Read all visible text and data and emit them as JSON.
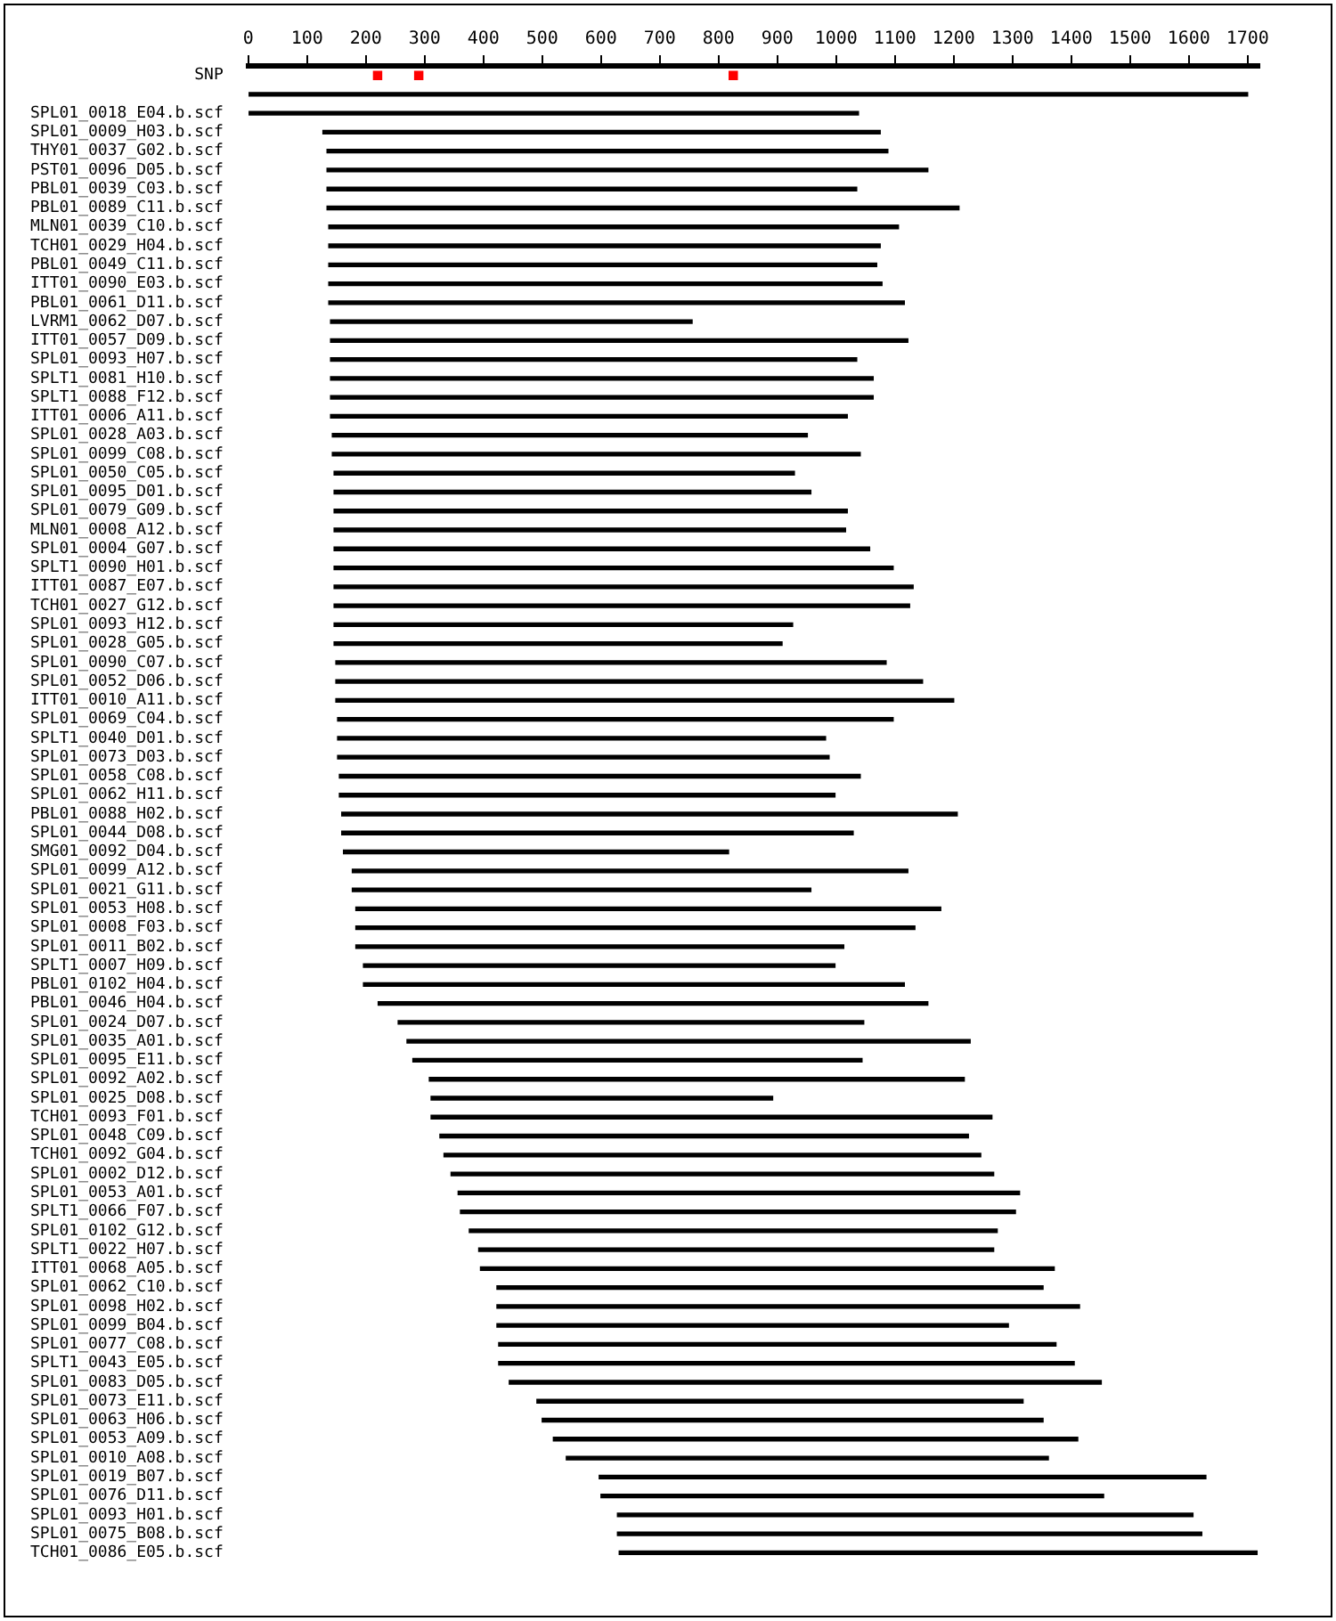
{
  "chart_data": {
    "type": "bar",
    "orientation": "horizontal",
    "categories": [
      "SNP",
      null,
      "SPL01_0018_E04.b.scf",
      "SPL01_0009_H03.b.scf",
      "THY01_0037_G02.b.scf",
      "PST01_0096_D05.b.scf",
      "PBL01_0039_C03.b.scf",
      "PBL01_0089_C11.b.scf",
      "MLN01_0039_C10.b.scf",
      "TCH01_0029_H04.b.scf",
      "PBL01_0049_C11.b.scf",
      "ITT01_0090_E03.b.scf",
      "PBL01_0061_D11.b.scf",
      "LVRM1_0062_D07.b.scf",
      "ITT01_0057_D09.b.scf",
      "SPL01_0093_H07.b.scf",
      "SPLT1_0081_H10.b.scf",
      "SPLT1_0088_F12.b.scf",
      "ITT01_0006_A11.b.scf",
      "SPL01_0028_A03.b.scf",
      "SPL01_0099_C08.b.scf",
      "SPL01_0050_C05.b.scf",
      "SPL01_0095_D01.b.scf",
      "SPL01_0079_G09.b.scf",
      "MLN01_0008_A12.b.scf",
      "SPL01_0004_G07.b.scf",
      "SPLT1_0090_H01.b.scf",
      "ITT01_0087_E07.b.scf",
      "TCH01_0027_G12.b.scf",
      "SPL01_0093_H12.b.scf",
      "SPL01_0028_G05.b.scf",
      "SPL01_0090_C07.b.scf",
      "SPL01_0052_D06.b.scf",
      "ITT01_0010_A11.b.scf",
      "SPL01_0069_C04.b.scf",
      "SPLT1_0040_D01.b.scf",
      "SPL01_0073_D03.b.scf",
      "SPL01_0058_C08.b.scf",
      "SPL01_0062_H11.b.scf",
      "PBL01_0088_H02.b.scf",
      "SPL01_0044_D08.b.scf",
      "SMG01_0092_D04.b.scf",
      "SPL01_0099_A12.b.scf",
      "SPL01_0021_G11.b.scf",
      "SPL01_0053_H08.b.scf",
      "SPL01_0008_F03.b.scf",
      "SPL01_0011_B02.b.scf",
      "SPLT1_0007_H09.b.scf",
      "PBL01_0102_H04.b.scf",
      "PBL01_0046_H04.b.scf",
      "SPL01_0024_D07.b.scf",
      "SPL01_0035_A01.b.scf",
      "SPL01_0095_E11.b.scf",
      "SPL01_0092_A02.b.scf",
      "SPL01_0025_D08.b.scf",
      "TCH01_0093_F01.b.scf",
      "SPL01_0048_C09.b.scf",
      "TCH01_0092_G04.b.scf",
      "SPL01_0002_D12.b.scf",
      "SPL01_0053_A01.b.scf",
      "SPLT1_0066_F07.b.scf",
      "SPL01_0102_G12.b.scf",
      "SPLT1_0022_H07.b.scf",
      "ITT01_0068_A05.b.scf",
      "SPL01_0062_C10.b.scf",
      "SPL01_0098_H02.b.scf",
      "SPL01_0099_B04.b.scf",
      "SPL01_0077_C08.b.scf",
      "SPLT1_0043_E05.b.scf",
      "SPL01_0083_D05.b.scf",
      "SPL01_0073_E11.b.scf",
      "SPL01_0063_H06.b.scf",
      "SPL01_0053_A09.b.scf",
      "SPL01_0010_A08.b.scf",
      "SPL01_0019_B07.b.scf",
      "SPL01_0076_D11.b.scf",
      "SPL01_0093_H01.b.scf",
      "SPL01_0075_B08.b.scf",
      "TCH01_0086_E05.b.scf"
    ],
    "series": [
      {
        "type": "bar",
        "color": "#000000",
        "base": [
          null,
          0,
          0,
          127,
          134,
          134,
          134,
          134,
          137,
          137,
          137,
          137,
          137,
          140,
          140,
          140,
          140,
          140,
          140,
          143,
          143,
          146,
          146,
          146,
          146,
          146,
          146,
          146,
          146,
          146,
          146,
          149,
          149,
          149,
          152,
          152,
          152,
          155,
          155,
          159,
          159,
          162,
          177,
          177,
          183,
          183,
          183,
          196,
          196,
          221,
          255,
          270,
          280,
          308,
          311,
          311,
          326,
          333,
          345,
          357,
          361,
          376,
          392,
          395,
          423,
          423,
          423,
          426,
          426,
          444,
          491,
          500,
          519,
          541,
          597,
          600,
          628,
          628,
          631
        ],
        "values": [
          null,
          1700,
          1038,
          948,
          954,
          1022,
          901,
          1075,
          969,
          938,
          932,
          941,
          979,
          615,
          982,
          895,
          923,
          923,
          879,
          808,
          898,
          783,
          811,
          873,
          870,
          911,
          951,
          985,
          979,
          780,
          762,
          936,
          998,
          1051,
          945,
          830,
          836,
          886,
          843,
          1047,
          870,
          655,
          945,
          780,
          995,
          951,
          830,
          802,
          920,
          935,
          792,
          958,
          764,
          910,
          581,
          954,
          899,
          913,
          923,
          955,
          944,
          898,
          876,
          976,
          929,
          991,
          870,
          948,
          979,
          1007,
          827,
          852,
          892,
          820,
          1032,
          855,
          979,
          994,
          1085
        ]
      },
      {
        "type": "scatter",
        "color": "#ff0000",
        "marker": "square",
        "x": [
          "SNP",
          "SNP",
          "SNP"
        ],
        "values": [
          220,
          290,
          825
        ]
      }
    ],
    "xlim": [
      0,
      1720
    ],
    "xticks": [
      0,
      100,
      200,
      300,
      400,
      500,
      600,
      700,
      800,
      900,
      1000,
      1100,
      1200,
      1300,
      1400,
      1500,
      1600,
      1700
    ]
  }
}
